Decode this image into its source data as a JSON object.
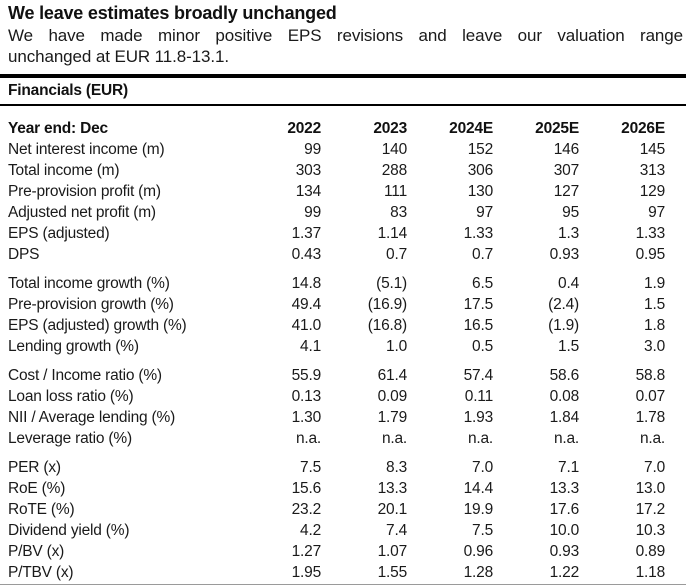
{
  "page": {
    "title": "We leave estimates broadly unchanged",
    "subtitle_lines": [
      "We have made minor positive EPS revisions and leave our valuation range",
      "unchanged at EUR 11.8-13.1."
    ],
    "section_title": "Financials (EUR)"
  },
  "table": {
    "header": {
      "label": "Year end: Dec",
      "years": [
        "2022",
        "2023",
        "2024E",
        "2025E",
        "2026E"
      ]
    },
    "groups": [
      {
        "rows": [
          {
            "label": "Net interest income (m)",
            "values": [
              "99",
              "140",
              "152",
              "146",
              "145"
            ]
          },
          {
            "label": "Total income (m)",
            "values": [
              "303",
              "288",
              "306",
              "307",
              "313"
            ]
          },
          {
            "label": "Pre-provision profit (m)",
            "values": [
              "134",
              "111",
              "130",
              "127",
              "129"
            ]
          },
          {
            "label": "Adjusted net profit (m)",
            "values": [
              "99",
              "83",
              "97",
              "95",
              "97"
            ]
          },
          {
            "label": "EPS (adjusted)",
            "values": [
              "1.37",
              "1.14",
              "1.33",
              "1.3",
              "1.33"
            ]
          },
          {
            "label": "DPS",
            "values": [
              "0.43",
              "0.7",
              "0.7",
              "0.93",
              "0.95"
            ]
          }
        ]
      },
      {
        "rows": [
          {
            "label": "Total income growth (%)",
            "values": [
              "14.8",
              "(5.1)",
              "6.5",
              "0.4",
              "1.9"
            ]
          },
          {
            "label": "Pre-provision growth (%)",
            "values": [
              "49.4",
              "(16.9)",
              "17.5",
              "(2.4)",
              "1.5"
            ]
          },
          {
            "label": "EPS (adjusted) growth (%)",
            "values": [
              "41.0",
              "(16.8)",
              "16.5",
              "(1.9)",
              "1.8"
            ]
          },
          {
            "label": "Lending growth (%)",
            "values": [
              "4.1",
              "1.0",
              "0.5",
              "1.5",
              "3.0"
            ]
          }
        ]
      },
      {
        "rows": [
          {
            "label": "Cost / Income ratio (%)",
            "values": [
              "55.9",
              "61.4",
              "57.4",
              "58.6",
              "58.8"
            ]
          },
          {
            "label": "Loan loss ratio (%)",
            "values": [
              "0.13",
              "0.09",
              "0.11",
              "0.08",
              "0.07"
            ]
          },
          {
            "label": "NII / Average lending (%)",
            "values": [
              "1.30",
              "1.79",
              "1.93",
              "1.84",
              "1.78"
            ]
          },
          {
            "label": "Leverage ratio (%)",
            "values": [
              "n.a.",
              "n.a.",
              "n.a.",
              "n.a.",
              "n.a."
            ]
          }
        ]
      },
      {
        "rows": [
          {
            "label": "PER (x)",
            "values": [
              "7.5",
              "8.3",
              "7.0",
              "7.1",
              "7.0"
            ]
          },
          {
            "label": "RoE (%)",
            "values": [
              "15.6",
              "13.3",
              "14.4",
              "13.3",
              "13.0"
            ]
          },
          {
            "label": "RoTE (%)",
            "values": [
              "23.2",
              "20.1",
              "19.9",
              "17.6",
              "17.2"
            ]
          },
          {
            "label": "Dividend yield (%)",
            "values": [
              "4.2",
              "7.4",
              "7.5",
              "10.0",
              "10.3"
            ]
          },
          {
            "label": "P/BV (x)",
            "values": [
              "1.27",
              "1.07",
              "0.96",
              "0.93",
              "0.89"
            ]
          },
          {
            "label": "P/TBV (x)",
            "values": [
              "1.95",
              "1.55",
              "1.28",
              "1.22",
              "1.18"
            ]
          }
        ]
      }
    ]
  },
  "colors": {
    "text": "#1a1a1a",
    "heading": "#111111",
    "rule": "#000000"
  }
}
